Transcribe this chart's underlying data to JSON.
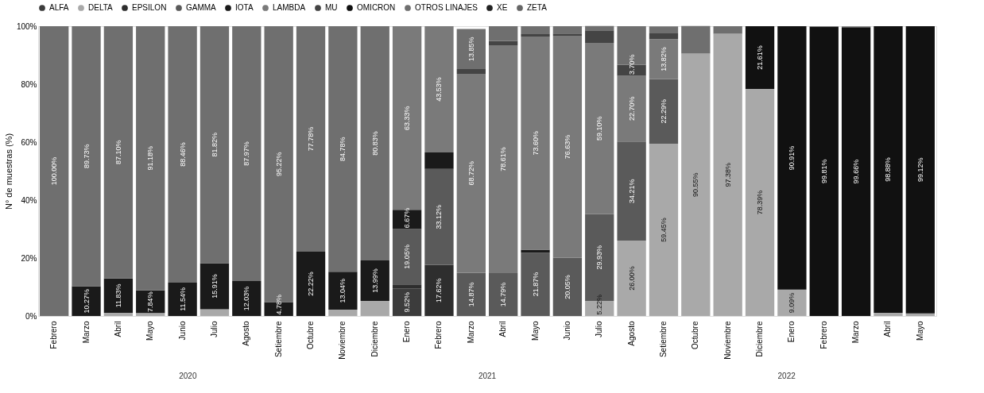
{
  "chart_data": {
    "type": "bar",
    "stacked": true,
    "ylabel": "N° de muestras (%)",
    "legend": "top",
    "grid": false,
    "categories": [
      "Febrero",
      "Marzo",
      "Abril",
      "Mayo",
      "Junio",
      "Julio",
      "Agosto",
      "Setiembre",
      "Octubre",
      "Noviembre",
      "Diciembre",
      "Enero",
      "Febrero",
      "Marzo",
      "Abril",
      "Mayo",
      "Junio",
      "Julio",
      "Agosto",
      "Setiembre",
      "Octubre",
      "Noviembre",
      "Diciembre",
      "Enero",
      "Febrero",
      "Marzo",
      "Abril",
      "Mayo"
    ],
    "ylim": [
      0,
      100
    ],
    "yticks": [
      {
        "value": 0,
        "label": "0%"
      },
      {
        "value": 20,
        "label": "20%"
      },
      {
        "value": 40,
        "label": "40%"
      },
      {
        "value": 60,
        "label": "60%"
      },
      {
        "value": 80,
        "label": "80%"
      },
      {
        "value": 100,
        "label": "100%"
      }
    ],
    "annotations": [
      "2020",
      "2021",
      "2022"
    ],
    "series": [
      {
        "name": "ALFA",
        "color": "#3c3c3c",
        "values": [
          null,
          null,
          null,
          null,
          null,
          null,
          null,
          null,
          null,
          null,
          null,
          9.52,
          null,
          null,
          null,
          null,
          null,
          null,
          null,
          null,
          null,
          null,
          null,
          null,
          null,
          null,
          null,
          null
        ],
        "value_labels": [
          null,
          null,
          null,
          null,
          null,
          null,
          null,
          null,
          null,
          null,
          null,
          "9.52%",
          null,
          null,
          null,
          null,
          null,
          null,
          null,
          null,
          null,
          null,
          null,
          null,
          null,
          null,
          null,
          null
        ]
      },
      {
        "name": "DELTA",
        "color": "#a9a9a9",
        "values": [
          null,
          null,
          1.1,
          1.0,
          null,
          2.3,
          null,
          null,
          null,
          2.2,
          5.2,
          null,
          null,
          null,
          null,
          null,
          null,
          5.22,
          26.0,
          59.45,
          90.55,
          97.38,
          78.39,
          9.09,
          null,
          null,
          1.1,
          0.9
        ],
        "value_labels": [
          null,
          null,
          null,
          null,
          null,
          null,
          null,
          null,
          null,
          null,
          null,
          null,
          null,
          null,
          null,
          null,
          null,
          "5.22%",
          "26.00%",
          "59.45%",
          "90.55%",
          "97.38%",
          "78.39%",
          "9.09%",
          null,
          null,
          null,
          null
        ]
      },
      {
        "name": "EPSILON",
        "color": "#2e2e2e",
        "values": [
          null,
          null,
          null,
          null,
          null,
          null,
          null,
          null,
          null,
          null,
          null,
          1.4,
          17.62,
          null,
          null,
          null,
          null,
          null,
          null,
          null,
          null,
          null,
          null,
          null,
          null,
          null,
          null,
          null
        ],
        "value_labels": [
          null,
          null,
          null,
          null,
          null,
          null,
          null,
          null,
          null,
          null,
          null,
          null,
          "17.62%",
          null,
          null,
          null,
          null,
          null,
          null,
          null,
          null,
          null,
          null,
          null,
          null,
          null,
          null,
          null
        ]
      },
      {
        "name": "GAMMA",
        "color": "#5a5a5a",
        "values": [
          null,
          null,
          null,
          null,
          null,
          null,
          null,
          null,
          null,
          null,
          null,
          19.05,
          33.12,
          14.87,
          14.79,
          21.87,
          20.05,
          29.93,
          34.21,
          22.29,
          null,
          null,
          null,
          null,
          null,
          null,
          null,
          null
        ],
        "value_labels": [
          null,
          null,
          null,
          null,
          null,
          null,
          null,
          null,
          null,
          null,
          null,
          "19.05%",
          "33.12%",
          "14.87%",
          "14.79%",
          "21.87%",
          "20.05%",
          "29.93%",
          "34.21%",
          "22.29%",
          null,
          null,
          null,
          null,
          null,
          null,
          null,
          null
        ]
      },
      {
        "name": "IOTA",
        "color": "#1a1a1a",
        "values": [
          null,
          10.27,
          11.83,
          7.84,
          11.54,
          15.91,
          12.03,
          4.78,
          22.22,
          13.04,
          13.99,
          6.67,
          5.7,
          null,
          null,
          1.0,
          null,
          null,
          null,
          null,
          null,
          null,
          null,
          null,
          null,
          null,
          null,
          null
        ],
        "value_labels": [
          null,
          "10.27%",
          "11.83%",
          "7.84%",
          "11.54%",
          "15.91%",
          "12.03%",
          "4.78%",
          "22.22%",
          "13.04%",
          "13.99%",
          "6.67%",
          null,
          null,
          null,
          null,
          null,
          null,
          null,
          null,
          null,
          null,
          null,
          null,
          null,
          null,
          null,
          null
        ]
      },
      {
        "name": "LAMBDA",
        "color": "#7a7a7a",
        "values": [
          null,
          null,
          null,
          null,
          null,
          null,
          null,
          null,
          null,
          null,
          null,
          63.33,
          43.53,
          68.72,
          78.61,
          73.6,
          76.63,
          59.1,
          22.7,
          13.82,
          null,
          null,
          null,
          null,
          null,
          null,
          null,
          null
        ],
        "value_labels": [
          null,
          null,
          null,
          null,
          null,
          null,
          null,
          null,
          null,
          null,
          null,
          "63.33%",
          "43.53%",
          "68.72%",
          "78.61%",
          "73.60%",
          "76.63%",
          "59.10%",
          "22.70%",
          "13.82%",
          null,
          null,
          null,
          null,
          null,
          null,
          null,
          null
        ]
      },
      {
        "name": "MU",
        "color": "#444444",
        "values": [
          null,
          null,
          null,
          null,
          null,
          null,
          null,
          null,
          null,
          null,
          null,
          null,
          null,
          1.6,
          1.5,
          0.8,
          0.8,
          4.3,
          3.7,
          2.0,
          null,
          null,
          null,
          null,
          null,
          null,
          null,
          null
        ],
        "value_labels": [
          null,
          null,
          null,
          null,
          null,
          null,
          null,
          null,
          null,
          null,
          null,
          null,
          null,
          null,
          null,
          null,
          null,
          null,
          "3.70%",
          null,
          null,
          null,
          null,
          null,
          null,
          null,
          null,
          null
        ]
      },
      {
        "name": "OMICRON",
        "color": "#111111",
        "values": [
          null,
          null,
          null,
          null,
          null,
          null,
          null,
          null,
          null,
          null,
          null,
          null,
          null,
          null,
          null,
          null,
          null,
          null,
          null,
          null,
          null,
          null,
          21.61,
          90.91,
          99.81,
          99.66,
          98.88,
          99.12
        ],
        "value_labels": [
          null,
          null,
          null,
          null,
          null,
          null,
          null,
          null,
          null,
          null,
          null,
          null,
          null,
          null,
          null,
          null,
          null,
          null,
          null,
          null,
          null,
          null,
          "21.61%",
          "90.91%",
          "99.81%",
          "99.66%",
          "98.88%",
          "99.12%"
        ]
      },
      {
        "name": "OTROS LINAJES",
        "color": "#6f6f6f",
        "values": [
          100,
          89.73,
          87.1,
          91.18,
          88.46,
          81.82,
          87.97,
          95.22,
          77.78,
          84.78,
          80.83,
          null,
          null,
          13.85,
          5.1,
          2.7,
          2.5,
          1.5,
          13.4,
          2.4,
          9.5,
          2.6,
          null,
          null,
          0.2,
          0.3,
          null,
          null
        ],
        "value_labels": [
          "100.00%",
          "89.73%",
          "87.10%",
          "91.18%",
          "88.46%",
          "81.82%",
          "87.97%",
          "95.22%",
          "77.78%",
          "84.78%",
          "80.83%",
          null,
          null,
          "13.85%",
          null,
          null,
          null,
          null,
          null,
          null,
          null,
          null,
          null,
          null,
          null,
          null,
          null,
          null
        ]
      },
      {
        "name": "XE",
        "color": "#222222",
        "values": [
          null,
          null,
          null,
          null,
          null,
          null,
          null,
          null,
          null,
          null,
          null,
          null,
          null,
          null,
          null,
          null,
          null,
          null,
          null,
          null,
          null,
          null,
          null,
          null,
          null,
          null,
          null,
          null
        ]
      },
      {
        "name": "ZETA",
        "color": "#666666",
        "values": [
          null,
          null,
          null,
          null,
          null,
          null,
          null,
          null,
          null,
          null,
          null,
          null,
          null,
          null,
          null,
          null,
          null,
          null,
          null,
          null,
          null,
          null,
          null,
          null,
          null,
          null,
          null,
          null
        ]
      }
    ]
  }
}
